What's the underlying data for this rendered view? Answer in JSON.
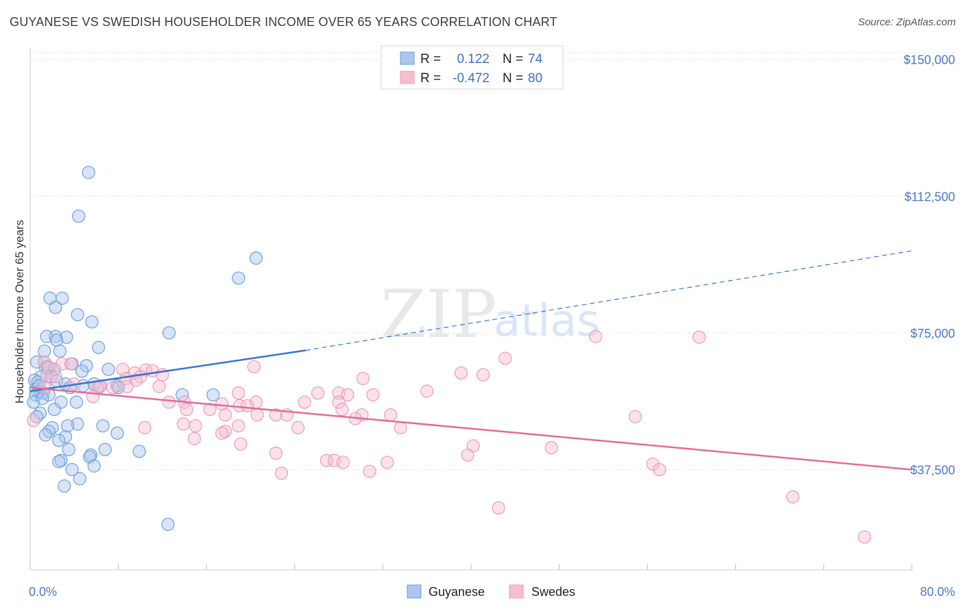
{
  "title": "GUYANESE VS SWEDISH HOUSEHOLDER INCOME OVER 65 YEARS CORRELATION CHART",
  "source": "Source: ZipAtlas.com",
  "watermark": {
    "zip": "ZIP",
    "atlas": "atlas"
  },
  "colors": {
    "guyanese_fill": "#a9c6ee",
    "guyanese_stroke": "#6e9edb",
    "guyanese_line": "#3575d3",
    "swedes_fill": "#f6bfd0",
    "swedes_stroke": "#e99bb4",
    "swedes_line": "#e46a97",
    "tick_text": "#4a78c4",
    "grid": "#e3e3e3"
  },
  "legend": {
    "rows": [
      {
        "r_label": "R =",
        "r_value": "0.122",
        "n_label": "N =",
        "n_value": "74"
      },
      {
        "r_label": "R =",
        "r_value": "-0.472",
        "n_label": "N =",
        "n_value": "80"
      }
    ]
  },
  "bottom_legend": [
    "Guyanese",
    "Swedes"
  ],
  "chart_data": {
    "type": "scatter",
    "title": "GUYANESE VS SWEDISH HOUSEHOLDER INCOME OVER 65 YEARS CORRELATION CHART",
    "xlabel": "",
    "ylabel": "Householder Income Over 65 years",
    "xlim": [
      0,
      80
    ],
    "ylim": [
      10000,
      155000
    ],
    "x_tick_labels": [
      "0.0%",
      "80.0%"
    ],
    "y_ticks": [
      37500,
      75000,
      112500,
      150000
    ],
    "y_tick_labels": [
      "$37,500",
      "$75,000",
      "$112,500",
      "$150,000"
    ],
    "grid": true,
    "legend_position": "top-center",
    "series": [
      {
        "name": "Guyanese",
        "r": 0.122,
        "n": 74,
        "trend": {
          "x0": 0,
          "y0": 59000,
          "x_solid_end": 25,
          "y_solid_end": 70200,
          "x1": 80,
          "y1": 97500
        },
        "points": [
          [
            5.3,
            119000
          ],
          [
            4.4,
            107000
          ],
          [
            20.5,
            95500
          ],
          [
            18.9,
            90000
          ],
          [
            1.8,
            84500
          ],
          [
            2.9,
            84500
          ],
          [
            2.3,
            82000
          ],
          [
            4.3,
            80000
          ],
          [
            5.6,
            78000
          ],
          [
            12.6,
            75000
          ],
          [
            1.5,
            74000
          ],
          [
            2.3,
            74000
          ],
          [
            3.3,
            73800
          ],
          [
            2.4,
            73000
          ],
          [
            6.2,
            71000
          ],
          [
            1.3,
            70000
          ],
          [
            2.7,
            70000
          ],
          [
            0.6,
            67000
          ],
          [
            1.3,
            67000
          ],
          [
            3.8,
            66500
          ],
          [
            1.4,
            65500
          ],
          [
            1.6,
            65800
          ],
          [
            2.2,
            65000
          ],
          [
            5.1,
            66000
          ],
          [
            7.1,
            65000
          ],
          [
            4.7,
            64500
          ],
          [
            1.0,
            63000
          ],
          [
            1.9,
            63000
          ],
          [
            0.4,
            62000
          ],
          [
            2.4,
            61800
          ],
          [
            0.7,
            61500
          ],
          [
            3.2,
            61000
          ],
          [
            5.8,
            61000
          ],
          [
            4.8,
            60500
          ],
          [
            7.9,
            60500
          ],
          [
            0.5,
            59500
          ],
          [
            0.9,
            59000
          ],
          [
            1.2,
            58500
          ],
          [
            8.0,
            60000
          ],
          [
            0.5,
            58000
          ],
          [
            1.7,
            58000
          ],
          [
            13.8,
            58000
          ],
          [
            16.6,
            58000
          ],
          [
            2.8,
            56000
          ],
          [
            4.2,
            56000
          ],
          [
            2.2,
            54000
          ],
          [
            0.9,
            53000
          ],
          [
            0.6,
            52000
          ],
          [
            4.3,
            50000
          ],
          [
            3.4,
            49500
          ],
          [
            6.6,
            49500
          ],
          [
            2.0,
            49000
          ],
          [
            1.7,
            48000
          ],
          [
            7.9,
            47500
          ],
          [
            1.4,
            47000
          ],
          [
            3.2,
            46500
          ],
          [
            2.6,
            45500
          ],
          [
            6.8,
            43000
          ],
          [
            3.5,
            43000
          ],
          [
            9.9,
            42500
          ],
          [
            5.5,
            41500
          ],
          [
            5.4,
            41000
          ],
          [
            2.8,
            40000
          ],
          [
            2.6,
            39700
          ],
          [
            5.8,
            38500
          ],
          [
            3.8,
            37500
          ],
          [
            4.5,
            35000
          ],
          [
            3.1,
            33000
          ],
          [
            12.5,
            22500
          ],
          [
            0.3,
            56000
          ],
          [
            0.8,
            60500
          ],
          [
            1.1,
            57000
          ],
          [
            3.6,
            60000
          ],
          [
            6.3,
            60200
          ]
        ]
      },
      {
        "name": "Swedes",
        "r": -0.472,
        "n": 80,
        "trend": {
          "x0": 0,
          "y0": 60000,
          "x1": 80,
          "y1": 37500
        },
        "points": [
          [
            51.3,
            74000
          ],
          [
            60.7,
            73800
          ],
          [
            43.1,
            68000
          ],
          [
            1.3,
            67000
          ],
          [
            2.9,
            66500
          ],
          [
            3.7,
            66500
          ],
          [
            20.3,
            65700
          ],
          [
            1.7,
            65500
          ],
          [
            8.4,
            65000
          ],
          [
            10.5,
            64800
          ],
          [
            11.1,
            64600
          ],
          [
            39.1,
            64000
          ],
          [
            9.5,
            64000
          ],
          [
            41.1,
            63500
          ],
          [
            12.0,
            63500
          ],
          [
            1.5,
            63000
          ],
          [
            2.3,
            63000
          ],
          [
            10.0,
            63000
          ],
          [
            8.7,
            62500
          ],
          [
            30.2,
            62500
          ],
          [
            9.6,
            62000
          ],
          [
            4.0,
            61000
          ],
          [
            6.4,
            60500
          ],
          [
            11.7,
            60300
          ],
          [
            1.3,
            60000
          ],
          [
            7.5,
            60000
          ],
          [
            8.8,
            60300
          ],
          [
            6.1,
            60000
          ],
          [
            36.0,
            59000
          ],
          [
            26.1,
            58500
          ],
          [
            28.0,
            58500
          ],
          [
            18.9,
            58500
          ],
          [
            28.8,
            58000
          ],
          [
            31.1,
            58000
          ],
          [
            5.7,
            57500
          ],
          [
            12.6,
            56000
          ],
          [
            14.0,
            56000
          ],
          [
            20.5,
            56000
          ],
          [
            24.9,
            56000
          ],
          [
            28.0,
            56000
          ],
          [
            17.4,
            55500
          ],
          [
            19.0,
            55000
          ],
          [
            19.7,
            55000
          ],
          [
            14.2,
            54000
          ],
          [
            16.3,
            54000
          ],
          [
            28.3,
            54000
          ],
          [
            17.7,
            52500
          ],
          [
            20.6,
            52500
          ],
          [
            22.3,
            52500
          ],
          [
            23.3,
            52500
          ],
          [
            30.1,
            52500
          ],
          [
            32.7,
            52500
          ],
          [
            54.9,
            52000
          ],
          [
            29.5,
            51500
          ],
          [
            13.9,
            50000
          ],
          [
            15.0,
            49500
          ],
          [
            18.9,
            49500
          ],
          [
            10.4,
            49000
          ],
          [
            24.3,
            49000
          ],
          [
            33.6,
            49000
          ],
          [
            17.7,
            48000
          ],
          [
            17.4,
            47500
          ],
          [
            14.9,
            46000
          ],
          [
            19.1,
            44500
          ],
          [
            40.2,
            44000
          ],
          [
            47.3,
            43500
          ],
          [
            22.3,
            42000
          ],
          [
            39.7,
            41500
          ],
          [
            26.9,
            40000
          ],
          [
            27.6,
            40000
          ],
          [
            28.4,
            39500
          ],
          [
            32.4,
            39500
          ],
          [
            56.5,
            39000
          ],
          [
            57.1,
            37500
          ],
          [
            30.8,
            37000
          ],
          [
            22.8,
            36500
          ],
          [
            69.2,
            30000
          ],
          [
            42.5,
            27000
          ],
          [
            75.7,
            19000
          ],
          [
            0.3,
            51000
          ]
        ]
      }
    ]
  }
}
